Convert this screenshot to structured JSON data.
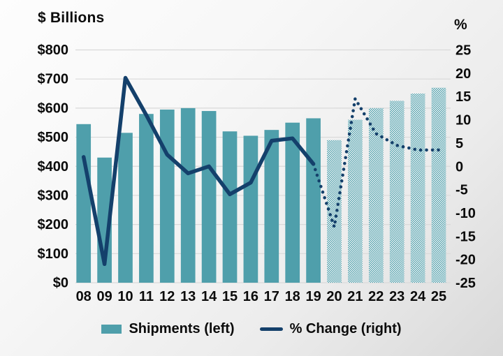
{
  "title": "$ Billions",
  "right_axis_symbol": "%",
  "legend": {
    "shipments": "Shipments (left)",
    "pct_change": "% Change (right)"
  },
  "colors": {
    "bar_teal": "#4f9fab",
    "line_navy": "#14406b",
    "gridline": "#d9d9d9",
    "text": "#0b0b0b",
    "hatch_bg": "#fbfbfb"
  },
  "chart_data": {
    "type": "combo (bar + line)",
    "categories": [
      "08",
      "09",
      "10",
      "11",
      "12",
      "13",
      "14",
      "15",
      "16",
      "17",
      "18",
      "19",
      "20",
      "21",
      "22",
      "23",
      "24",
      "25"
    ],
    "series": [
      {
        "name": "Shipments (left)",
        "type": "bar",
        "axis": "left",
        "unit": "$ Billions",
        "values": [
          545,
          430,
          515,
          580,
          595,
          600,
          590,
          520,
          505,
          525,
          550,
          565,
          490,
          560,
          600,
          625,
          650,
          670
        ]
      },
      {
        "name": "% Change (right)",
        "type": "line",
        "axis": "right",
        "unit": "%",
        "values": [
          2,
          -21,
          19,
          11,
          2.5,
          -1.5,
          0,
          -6,
          -3.5,
          5.5,
          6,
          0.5,
          -13,
          14.5,
          7,
          4.5,
          3.5,
          3.5
        ]
      }
    ],
    "left_axis": {
      "label": "$ Billions",
      "tick_labels": [
        "$800",
        "$700",
        "$600",
        "$500",
        "$400",
        "$300",
        "$200",
        "$100",
        "$0"
      ],
      "min": 0,
      "max": 800
    },
    "right_axis": {
      "label": "%",
      "tick_labels": [
        "25",
        "20",
        "15",
        "10",
        "5",
        "0",
        "-5",
        "-10",
        "-15",
        "-20",
        "-25"
      ],
      "tick_values": [
        25,
        20,
        15,
        10,
        5,
        0,
        -5,
        -10,
        -15,
        -20,
        -25
      ],
      "min": -25,
      "max": 25
    },
    "forecast_from_category": "20",
    "forecast_style": "hatched bars and dotted line",
    "grid": "horizontal gridlines on",
    "legend_position": "bottom"
  }
}
